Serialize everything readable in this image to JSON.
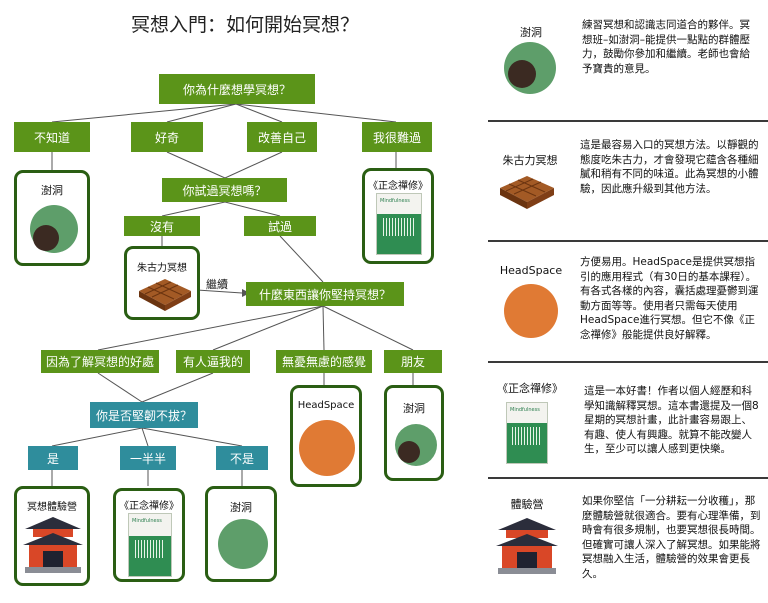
{
  "title": "冥想入門：如何開始冥想？",
  "flow": {
    "q1": "你為什麼想學冥想？",
    "a_unknown": "不知道",
    "a_curious": "好奇",
    "a_improve": "改善自己",
    "a_sad": "我很難過",
    "q2": "你試過冥想嗎？",
    "no": "沒有",
    "yes": "試過",
    "continue": "繼續",
    "q3": "什麼東西讓你堅持冥想？",
    "r_benefit": "因為了解冥想的好處",
    "r_forced": "有人逼我的",
    "r_carefree": "無憂無慮的感覺",
    "r_friend": "朋友",
    "q4": "你是否堅韌不拔？",
    "p_yes": "是",
    "p_half": "一半半",
    "p_no": "不是"
  },
  "cards": {
    "xiedong": "澍洞",
    "book": "《正念禪修》",
    "chocolate": "朱古力冥想",
    "headspace": "HeadSpace",
    "camp": "冥想體驗營"
  },
  "book_cover_text": "Mindfulness",
  "panels": [
    {
      "title": "澍洞",
      "text": "練習冥想和認識志同道合的夥伴。冥想班–如澍洞–能提供一點點的群體壓力，鼓勵你參加和繼續。老師也會給予寶貴的意見。"
    },
    {
      "title": "朱古力冥想",
      "text": "這是最容易入口的冥想方法。以靜觀的態度吃朱古力，才會發現它蘊含各種細膩和稍有不同的味道。此為冥想的小體驗，因此應升級到其他方法。"
    },
    {
      "title": "HeadSpace",
      "text": "方便易用。HeadSpace是提供冥想指引的應用程式（有30日的基本課程）。有各式各樣的內容，囊括處理憂鬱到運動方面等等。使用者只需每天使用HeadSpace進行冥想。但它不像《正念禪修》般能提供良好解釋。"
    },
    {
      "title": "《正念禪修》",
      "text": "這是一本好書！作者以個人經歷和科學知識解釋冥想。這本書還提及一個8星期的冥想計畫，此計畫容易跟上、有趣、使人有興趣。就算不能改變人生，至少可以讓人感到更快樂。"
    },
    {
      "title": "體驗營",
      "text": "如果你堅信「一分耕耘一分收穫」，那麼體驗營就很適合。要有心理準備，到時會有很多規制，也要冥想很長時間。但確實可讓人深入了解冥想。如果能將冥想融入生活，體驗營的效果會更長久。"
    }
  ],
  "colors": {
    "green": "#5b9419",
    "teal": "#2f8d9c",
    "circle_green": "#5e9e6a",
    "orange": "#e07a34",
    "chocolate": "#8b4a1e"
  }
}
